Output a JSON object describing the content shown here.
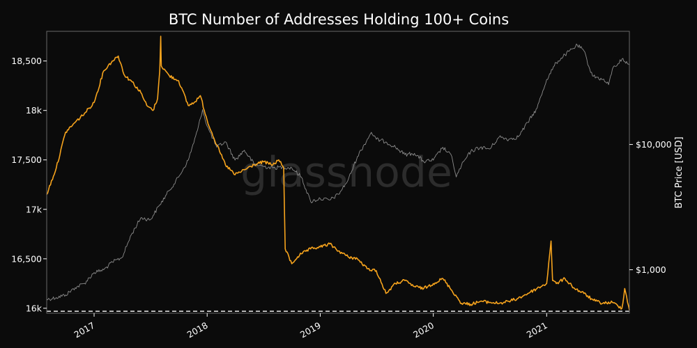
{
  "page": {
    "background": "#0b0b0b",
    "watermark": "glassnode"
  },
  "chart_data": {
    "type": "line",
    "title": "BTC Number of Addresses Holding 100+ Coins",
    "xlabel": "",
    "ylabel": "",
    "ylabel_right": "BTC Price [USD]",
    "x_range": [
      "2016-08-01",
      "2021-09-25"
    ],
    "x_ticks": [
      {
        "label": "2017",
        "date": "2017-01-01"
      },
      {
        "label": "2018",
        "date": "2018-01-01"
      },
      {
        "label": "2019",
        "date": "2019-01-01"
      },
      {
        "label": "2020",
        "date": "2020-01-01"
      },
      {
        "label": "2021",
        "date": "2021-01-01"
      }
    ],
    "y_left": {
      "range": [
        15950,
        18800
      ],
      "ticks": [
        {
          "label": "16k",
          "value": 16000
        },
        {
          "label": "16,500",
          "value": 16500
        },
        {
          "label": "17k",
          "value": 17000
        },
        {
          "label": "17,500",
          "value": 17500
        },
        {
          "label": "18k",
          "value": 18000
        },
        {
          "label": "18,500",
          "value": 18500
        }
      ]
    },
    "y_right": {
      "scale": "log",
      "range": [
        450,
        80000
      ],
      "ticks": [
        {
          "label": "$1,000",
          "value": 1000
        },
        {
          "label": "$10,000",
          "value": 10000
        }
      ]
    },
    "reference_line": {
      "value": 15970,
      "style": "dashed",
      "color": "#ffffff"
    },
    "grid": false,
    "series": [
      {
        "axis": "left",
        "color": "#f7a41d",
        "points": [
          [
            "2016-08-01",
            17150
          ],
          [
            "2016-09-01",
            17420
          ],
          [
            "2016-10-01",
            17780
          ],
          [
            "2016-11-01",
            17880
          ],
          [
            "2016-12-01",
            17970
          ],
          [
            "2017-01-01",
            18080
          ],
          [
            "2017-02-01",
            18400
          ],
          [
            "2017-03-01",
            18500
          ],
          [
            "2017-03-20",
            18550
          ],
          [
            "2017-04-10",
            18350
          ],
          [
            "2017-05-01",
            18300
          ],
          [
            "2017-06-01",
            18180
          ],
          [
            "2017-06-20",
            18050
          ],
          [
            "2017-07-10",
            18000
          ],
          [
            "2017-07-25",
            18120
          ],
          [
            "2017-08-01",
            18400
          ],
          [
            "2017-08-04",
            18750
          ],
          [
            "2017-08-06",
            18450
          ],
          [
            "2017-09-01",
            18350
          ],
          [
            "2017-10-01",
            18300
          ],
          [
            "2017-11-01",
            18050
          ],
          [
            "2017-11-20",
            18080
          ],
          [
            "2017-12-10",
            18150
          ],
          [
            "2018-01-01",
            17900
          ],
          [
            "2018-02-01",
            17650
          ],
          [
            "2018-03-01",
            17450
          ],
          [
            "2018-04-01",
            17350
          ],
          [
            "2018-05-01",
            17400
          ],
          [
            "2018-06-01",
            17450
          ],
          [
            "2018-07-01",
            17480
          ],
          [
            "2018-08-01",
            17450
          ],
          [
            "2018-08-20",
            17500
          ],
          [
            "2018-09-05",
            17420
          ],
          [
            "2018-09-10",
            16600
          ],
          [
            "2018-10-01",
            16450
          ],
          [
            "2018-10-20",
            16520
          ],
          [
            "2018-11-01",
            16550
          ],
          [
            "2018-12-01",
            16600
          ],
          [
            "2019-01-01",
            16620
          ],
          [
            "2019-02-01",
            16650
          ],
          [
            "2019-03-01",
            16580
          ],
          [
            "2019-04-01",
            16520
          ],
          [
            "2019-05-01",
            16500
          ],
          [
            "2019-06-01",
            16400
          ],
          [
            "2019-07-01",
            16380
          ],
          [
            "2019-08-01",
            16150
          ],
          [
            "2019-09-01",
            16250
          ],
          [
            "2019-10-01",
            16280
          ],
          [
            "2019-11-01",
            16220
          ],
          [
            "2019-12-01",
            16200
          ],
          [
            "2020-01-01",
            16250
          ],
          [
            "2020-02-01",
            16300
          ],
          [
            "2020-03-01",
            16180
          ],
          [
            "2020-04-01",
            16050
          ],
          [
            "2020-05-01",
            16040
          ],
          [
            "2020-06-01",
            16070
          ],
          [
            "2020-07-01",
            16060
          ],
          [
            "2020-08-01",
            16050
          ],
          [
            "2020-09-01",
            16070
          ],
          [
            "2020-10-01",
            16100
          ],
          [
            "2020-11-01",
            16150
          ],
          [
            "2020-12-01",
            16200
          ],
          [
            "2021-01-01",
            16250
          ],
          [
            "2021-01-15",
            16680
          ],
          [
            "2021-01-20",
            16280
          ],
          [
            "2021-02-01",
            16250
          ],
          [
            "2021-03-01",
            16300
          ],
          [
            "2021-04-01",
            16200
          ],
          [
            "2021-05-01",
            16150
          ],
          [
            "2021-06-01",
            16080
          ],
          [
            "2021-07-01",
            16050
          ],
          [
            "2021-08-01",
            16060
          ],
          [
            "2021-09-01",
            16000
          ],
          [
            "2021-09-10",
            16200
          ],
          [
            "2021-09-25",
            15980
          ]
        ]
      },
      {
        "axis": "right",
        "color": "#8c8c8c",
        "points": [
          [
            "2016-08-01",
            580
          ],
          [
            "2016-09-01",
            600
          ],
          [
            "2016-10-01",
            630
          ],
          [
            "2016-11-01",
            720
          ],
          [
            "2016-12-01",
            780
          ],
          [
            "2017-01-01",
            950
          ],
          [
            "2017-02-01",
            1000
          ],
          [
            "2017-03-01",
            1150
          ],
          [
            "2017-04-01",
            1250
          ],
          [
            "2017-05-01",
            1900
          ],
          [
            "2017-06-01",
            2600
          ],
          [
            "2017-07-01",
            2500
          ],
          [
            "2017-08-01",
            3300
          ],
          [
            "2017-09-01",
            4300
          ],
          [
            "2017-10-01",
            5500
          ],
          [
            "2017-11-01",
            7500
          ],
          [
            "2017-12-01",
            13000
          ],
          [
            "2017-12-17",
            19000
          ],
          [
            "2018-01-01",
            14000
          ],
          [
            "2018-02-01",
            9500
          ],
          [
            "2018-03-01",
            10500
          ],
          [
            "2018-04-01",
            7500
          ],
          [
            "2018-05-01",
            9000
          ],
          [
            "2018-06-01",
            7000
          ],
          [
            "2018-07-01",
            6700
          ],
          [
            "2018-08-01",
            6500
          ],
          [
            "2018-09-01",
            6600
          ],
          [
            "2018-10-01",
            6500
          ],
          [
            "2018-11-01",
            5500
          ],
          [
            "2018-12-01",
            3500
          ],
          [
            "2019-01-01",
            3700
          ],
          [
            "2019-02-01",
            3600
          ],
          [
            "2019-03-01",
            4000
          ],
          [
            "2019-04-01",
            5200
          ],
          [
            "2019-05-01",
            8000
          ],
          [
            "2019-06-15",
            12500
          ],
          [
            "2019-07-01",
            11000
          ],
          [
            "2019-08-01",
            10500
          ],
          [
            "2019-09-01",
            9500
          ],
          [
            "2019-10-01",
            8300
          ],
          [
            "2019-11-01",
            8500
          ],
          [
            "2019-12-01",
            7300
          ],
          [
            "2020-01-01",
            7500
          ],
          [
            "2020-02-01",
            9500
          ],
          [
            "2020-03-01",
            8000
          ],
          [
            "2020-03-15",
            5500
          ],
          [
            "2020-04-01",
            6800
          ],
          [
            "2020-05-01",
            8800
          ],
          [
            "2020-06-01",
            9500
          ],
          [
            "2020-07-01",
            9200
          ],
          [
            "2020-08-01",
            11500
          ],
          [
            "2020-09-01",
            11000
          ],
          [
            "2020-10-01",
            11500
          ],
          [
            "2020-11-01",
            15000
          ],
          [
            "2020-12-01",
            19500
          ],
          [
            "2021-01-01",
            33000
          ],
          [
            "2021-02-01",
            45000
          ],
          [
            "2021-03-01",
            52000
          ],
          [
            "2021-04-10",
            62000
          ],
          [
            "2021-05-01",
            56000
          ],
          [
            "2021-05-20",
            40000
          ],
          [
            "2021-06-01",
            35000
          ],
          [
            "2021-07-01",
            33000
          ],
          [
            "2021-07-20",
            30000
          ],
          [
            "2021-08-01",
            40000
          ],
          [
            "2021-09-01",
            48000
          ],
          [
            "2021-09-10",
            46000
          ],
          [
            "2021-09-25",
            43000
          ]
        ]
      }
    ]
  }
}
